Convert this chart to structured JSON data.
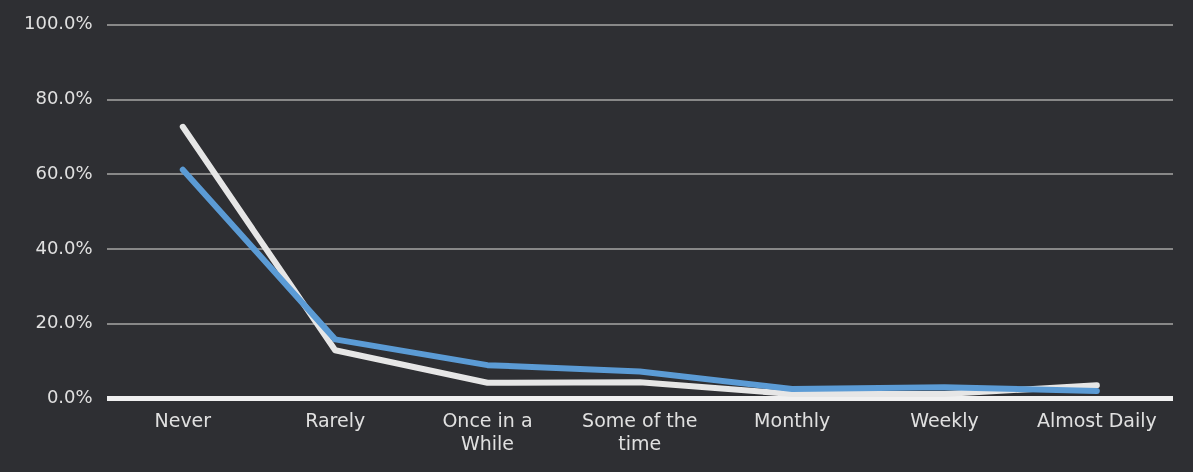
{
  "chart_data": {
    "type": "line",
    "categories": [
      "Never",
      "Rarely",
      "Once in a While",
      "Some of the time",
      "Monthly",
      "Weekly",
      "Almost Daily"
    ],
    "series": [
      {
        "color": "#5b9bd5",
        "values": [
          61.2,
          15.8,
          8.9,
          7.2,
          2.5,
          3.0,
          2.0
        ]
      },
      {
        "color": "#e6e6e6",
        "values": [
          72.7,
          12.9,
          4.2,
          4.3,
          1.2,
          1.2,
          3.5
        ]
      }
    ],
    "ylim": [
      0,
      100
    ],
    "yticks": [
      {
        "value": 0,
        "label": "0.0%"
      },
      {
        "value": 20,
        "label": "20.0%"
      },
      {
        "value": 40,
        "label": "40.0%"
      },
      {
        "value": 60,
        "label": "60.0%"
      },
      {
        "value": 80,
        "label": "80.0%"
      },
      {
        "value": 100,
        "label": "100.0%"
      }
    ],
    "grid": "y",
    "legend": false,
    "marker": "none",
    "line_style": "solid"
  }
}
